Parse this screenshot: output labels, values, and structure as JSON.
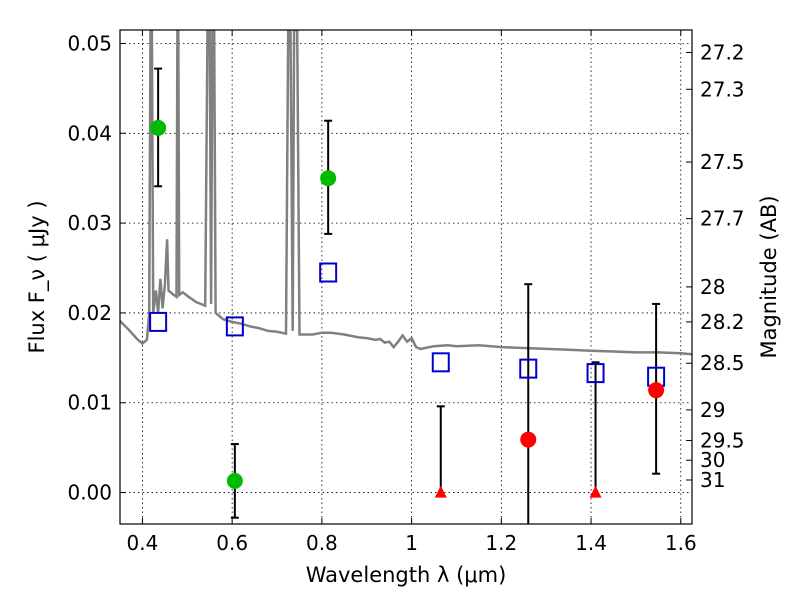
{
  "chart_data": {
    "type": "scatter",
    "xlabel": "Wavelength  λ (μm)",
    "ylabel": "Flux  F_ν  ( μJy )",
    "ylabel_right": "Magnitude (AB)",
    "xlim": [
      0.35,
      1.625
    ],
    "ylim": [
      -0.0035,
      0.0515
    ],
    "grid": true,
    "x_ticks": [
      0.4,
      0.6,
      0.8,
      1.0,
      1.2,
      1.4,
      1.6
    ],
    "x_tick_labels": [
      "0.4",
      "0.6",
      "0.8",
      "1",
      "1.2",
      "1.4",
      "1.6"
    ],
    "y_ticks": [
      0.0,
      0.01,
      0.02,
      0.03,
      0.04,
      0.05
    ],
    "y_tick_labels": [
      "0.00",
      "0.01",
      "0.02",
      "0.03",
      "0.04",
      "0.05"
    ],
    "mag_ticks": [
      {
        "label": "27.2",
        "flux": 0.049
      },
      {
        "label": "27.3",
        "flux": 0.0449
      },
      {
        "label": "27.5",
        "flux": 0.0368
      },
      {
        "label": "27.7",
        "flux": 0.0305
      },
      {
        "label": "28",
        "flux": 0.0229
      },
      {
        "label": "28.2",
        "flux": 0.019
      },
      {
        "label": "28.5",
        "flux": 0.0144
      },
      {
        "label": "29",
        "flux": 0.0092
      },
      {
        "label": "29.5",
        "flux": 0.0058
      },
      {
        "label": "30",
        "flux": 0.0036
      },
      {
        "label": "31",
        "flux": 0.0014
      }
    ],
    "model_sed": {
      "color": "#808080",
      "points": [
        [
          0.35,
          0.0191
        ],
        [
          0.37,
          0.0181
        ],
        [
          0.39,
          0.017
        ],
        [
          0.4,
          0.0166
        ],
        [
          0.41,
          0.017
        ],
        [
          0.415,
          0.02
        ],
        [
          0.418,
          0.0515
        ],
        [
          0.421,
          0.0515
        ],
        [
          0.424,
          0.02
        ],
        [
          0.43,
          0.0225
        ],
        [
          0.435,
          0.02
        ],
        [
          0.44,
          0.0238
        ],
        [
          0.445,
          0.0205
        ],
        [
          0.45,
          0.0232
        ],
        [
          0.455,
          0.0282
        ],
        [
          0.458,
          0.0225
        ],
        [
          0.465,
          0.0222
        ],
        [
          0.47,
          0.022
        ],
        [
          0.476,
          0.0218
        ],
        [
          0.478,
          0.0515
        ],
        [
          0.48,
          0.0515
        ],
        [
          0.482,
          0.022
        ],
        [
          0.49,
          0.0223
        ],
        [
          0.5,
          0.0219
        ],
        [
          0.52,
          0.0212
        ],
        [
          0.54,
          0.0208
        ],
        [
          0.545,
          0.0515
        ],
        [
          0.55,
          0.0515
        ],
        [
          0.553,
          0.021
        ],
        [
          0.556,
          0.0515
        ],
        [
          0.56,
          0.0515
        ],
        [
          0.563,
          0.02
        ],
        [
          0.58,
          0.0193
        ],
        [
          0.6,
          0.019
        ],
        [
          0.62,
          0.0188
        ],
        [
          0.64,
          0.0185
        ],
        [
          0.66,
          0.0183
        ],
        [
          0.68,
          0.018
        ],
        [
          0.7,
          0.0179
        ],
        [
          0.72,
          0.0177
        ],
        [
          0.725,
          0.0515
        ],
        [
          0.73,
          0.0515
        ],
        [
          0.735,
          0.018
        ],
        [
          0.738,
          0.0515
        ],
        [
          0.742,
          0.0515
        ],
        [
          0.745,
          0.0515
        ],
        [
          0.75,
          0.0176
        ],
        [
          0.78,
          0.0176
        ],
        [
          0.8,
          0.0178
        ],
        [
          0.82,
          0.0178
        ],
        [
          0.85,
          0.0176
        ],
        [
          0.88,
          0.0173
        ],
        [
          0.9,
          0.0172
        ],
        [
          0.92,
          0.017
        ],
        [
          0.93,
          0.0171
        ],
        [
          0.94,
          0.0167
        ],
        [
          0.95,
          0.0168
        ],
        [
          0.96,
          0.0162
        ],
        [
          0.97,
          0.0168
        ],
        [
          0.98,
          0.0175
        ],
        [
          0.99,
          0.0168
        ],
        [
          1.0,
          0.0172
        ],
        [
          1.01,
          0.0162
        ],
        [
          1.02,
          0.016
        ],
        [
          1.05,
          0.0163
        ],
        [
          1.08,
          0.0164
        ],
        [
          1.1,
          0.0163
        ],
        [
          1.15,
          0.0164
        ],
        [
          1.2,
          0.0162
        ],
        [
          1.25,
          0.0161
        ],
        [
          1.3,
          0.016
        ],
        [
          1.35,
          0.0159
        ],
        [
          1.4,
          0.0158
        ],
        [
          1.45,
          0.0157
        ],
        [
          1.5,
          0.0156
        ],
        [
          1.55,
          0.0156
        ],
        [
          1.6,
          0.0155
        ],
        [
          1.625,
          0.0154
        ]
      ]
    },
    "model_bands": {
      "marker": "open-square",
      "color": "#0000cc",
      "points": [
        [
          0.435,
          0.019
        ],
        [
          0.606,
          0.0185
        ],
        [
          0.814,
          0.0245
        ],
        [
          1.065,
          0.0145
        ],
        [
          1.26,
          0.0138
        ],
        [
          1.41,
          0.0133
        ],
        [
          1.545,
          0.0129
        ]
      ]
    },
    "detections_green": {
      "marker": "circle",
      "color": "#00bb00",
      "points": [
        {
          "x": 0.435,
          "y": 0.0406,
          "err_lo": 0.0341,
          "err_hi": 0.0472
        },
        {
          "x": 0.606,
          "y": 0.0013,
          "err_lo": -0.0028,
          "err_hi": 0.0054
        },
        {
          "x": 0.814,
          "y": 0.035,
          "err_lo": 0.0288,
          "err_hi": 0.0414
        }
      ]
    },
    "detections_red": {
      "marker": "circle",
      "color": "#ff0000",
      "points": [
        {
          "x": 1.26,
          "y": 0.0059,
          "err_lo": -0.0035,
          "err_hi": 0.0232
        },
        {
          "x": 1.545,
          "y": 0.0114,
          "err_lo": 0.0021,
          "err_hi": 0.021
        }
      ]
    },
    "upper_limits_red": {
      "marker": "triangle",
      "color": "#ff0000",
      "points": [
        {
          "x": 1.065,
          "y": 0.0,
          "err_lo": 0.0,
          "err_hi": 0.0096
        },
        {
          "x": 1.41,
          "y": 0.0,
          "err_lo": 0.0,
          "err_hi": 0.0145
        }
      ]
    }
  }
}
